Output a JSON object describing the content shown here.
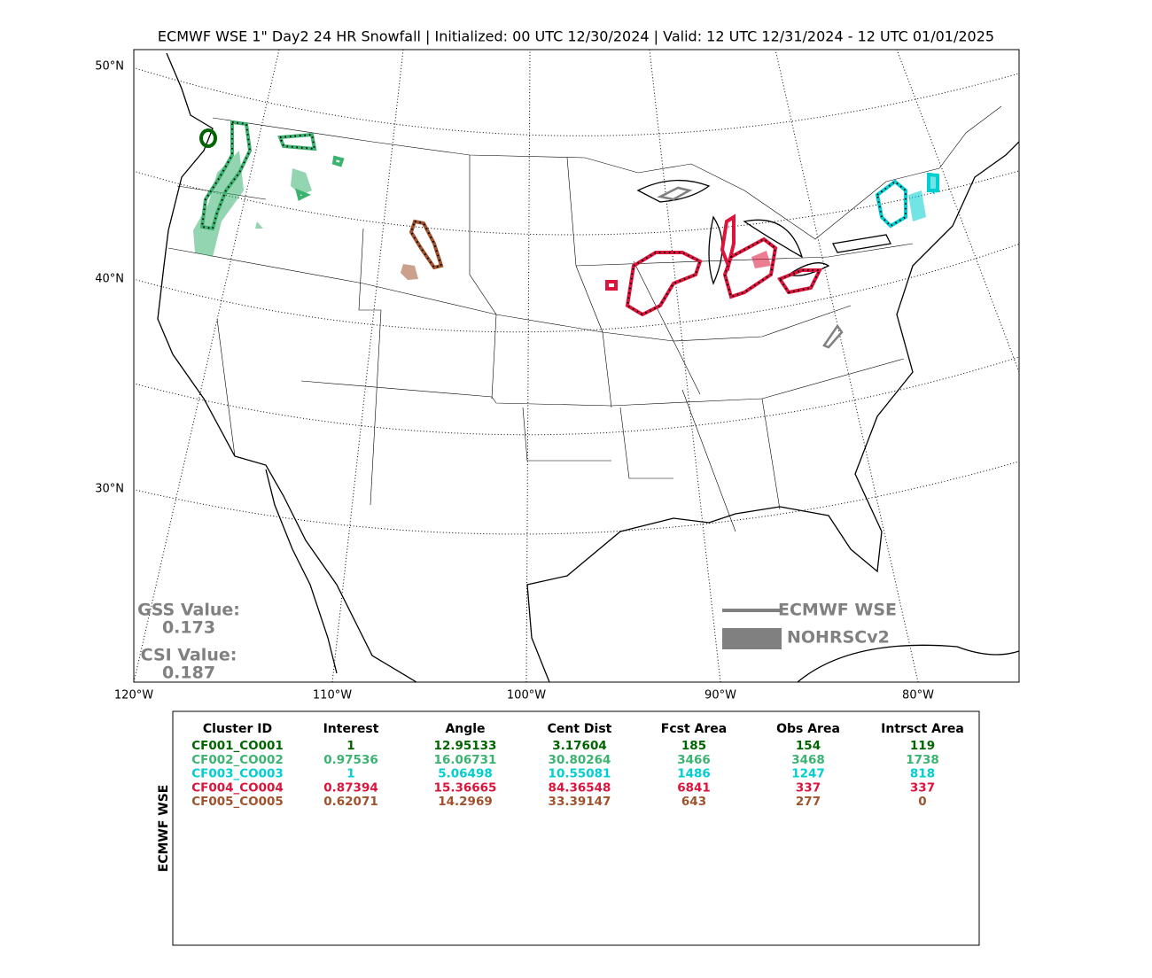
{
  "title": "ECMWF WSE 1\" Day2 24 HR Snowfall | Initialized: 00 UTC 12/30/2024 | Valid: 12 UTC 12/31/2024 - 12 UTC 01/01/2025",
  "map": {
    "lat_labels": [
      "50°N",
      "40°N",
      "30°N"
    ],
    "lon_labels": [
      "120°W",
      "110°W",
      "100°W",
      "90°W",
      "80°W"
    ],
    "legend": {
      "forecast": "ECMWF WSE",
      "observed": "NOHRSCv2"
    },
    "scores": [
      {
        "label": "GSS Value:",
        "value": "0.173"
      },
      {
        "label": "CSI Value:",
        "value": "0.187"
      }
    ]
  },
  "table": {
    "side_label": "ECMWF WSE",
    "header": [
      "Cluster ID",
      "Interest",
      "Angle",
      "Cent Dist",
      "Fcst Area",
      "Obs Area",
      "Intrsct Area"
    ],
    "rows": [
      {
        "color": "#006400",
        "cells": [
          "CF001_CO001",
          "1",
          "12.95133",
          "3.17604",
          "185",
          "154",
          "119"
        ]
      },
      {
        "color": "#3cb371",
        "cells": [
          "CF002_CO002",
          "0.97536",
          "16.06731",
          "30.80264",
          "3466",
          "3468",
          "1738"
        ]
      },
      {
        "color": "#00ced1",
        "cells": [
          "CF003_CO003",
          "1",
          "5.06498",
          "10.55081",
          "1486",
          "1247",
          "818"
        ]
      },
      {
        "color": "#dc143c",
        "cells": [
          "CF004_CO004",
          "0.87394",
          "15.36665",
          "84.36548",
          "6841",
          "337",
          "337"
        ]
      },
      {
        "color": "#a0522d",
        "cells": [
          "CF005_CO005",
          "0.62071",
          "14.2969",
          "33.39147",
          "643",
          "277",
          "0"
        ]
      }
    ]
  }
}
